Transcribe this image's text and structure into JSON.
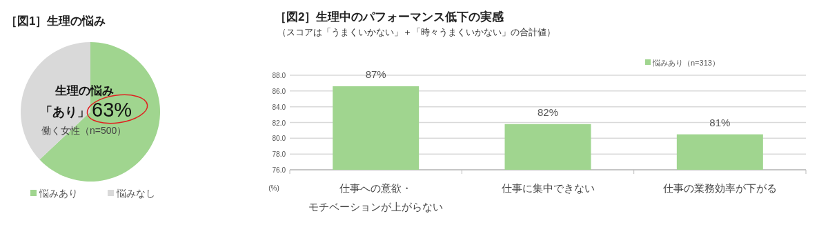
{
  "chart_data": [
    {
      "type": "pie",
      "title": "［図1］生理の悩み",
      "categories": [
        "悩みあり",
        "悩みなし"
      ],
      "values": [
        63,
        37
      ],
      "colors": [
        "#a0d58f",
        "#d9d9d9"
      ],
      "legend": "bottom",
      "annotations": [
        "生理の悩み",
        "「あり」",
        "63%",
        "働く女性（n=500）"
      ]
    },
    {
      "type": "bar",
      "title": "［図2］生理中のパフォーマンス低下の実感",
      "subtitle": "（スコアは「うまくいかない」＋「時々うまくいかない」の合計値）",
      "ylabel": "(%)",
      "categories": [
        "仕事への意欲・モチベーションが上がらない",
        "仕事に集中できない",
        "仕事の業務効率が下がる"
      ],
      "series": [
        {
          "name": "悩みあり（n=313）",
          "color": "#a0d58f",
          "values": [
            86.6,
            81.8,
            80.5
          ],
          "value_labels": [
            "87%",
            "82%",
            "81%"
          ]
        }
      ],
      "ylim": [
        76,
        88
      ],
      "yticks": [
        {
          "value": 76,
          "label": "76.0"
        },
        {
          "value": 78,
          "label": "78.0"
        },
        {
          "value": 80,
          "label": "80.0"
        },
        {
          "value": 82,
          "label": "82.0"
        },
        {
          "value": 84,
          "label": "84.0"
        },
        {
          "value": 86,
          "label": "86.0"
        },
        {
          "value": 88,
          "label": "88.0"
        }
      ],
      "grid": "y",
      "legend": "top right"
    }
  ]
}
